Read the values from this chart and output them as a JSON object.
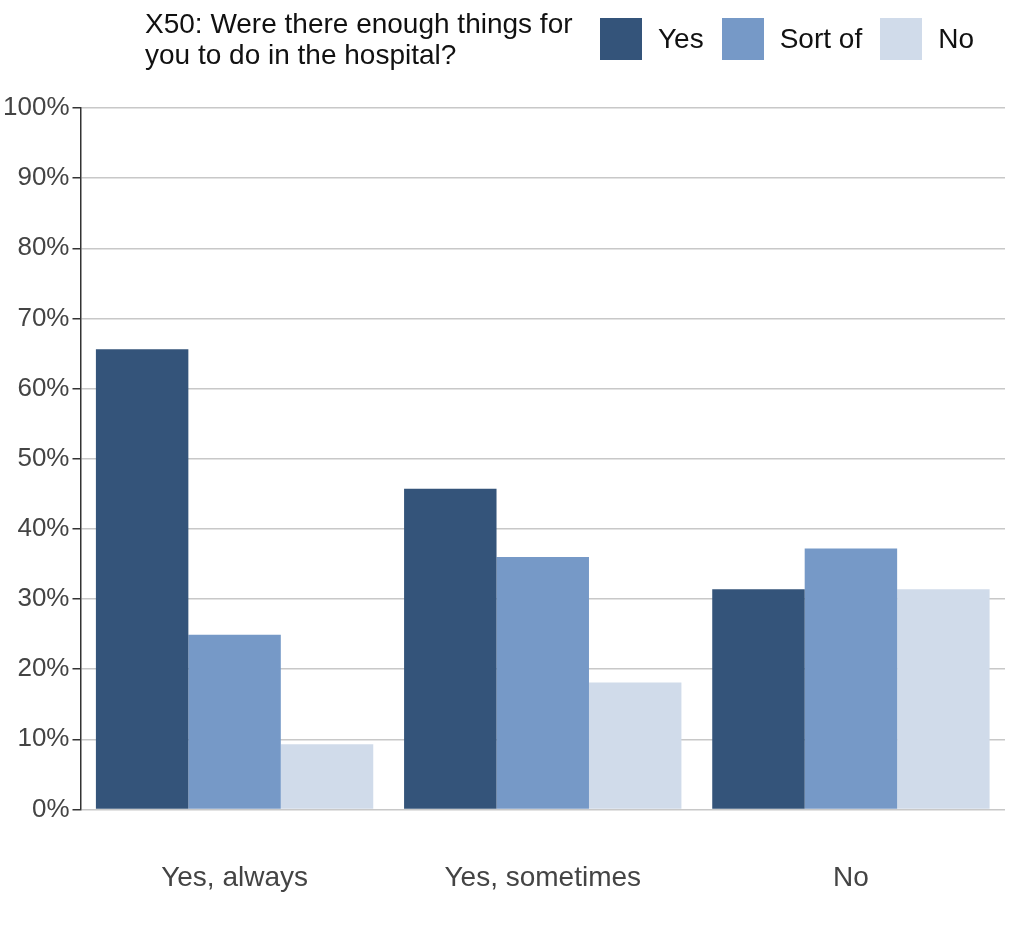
{
  "chart_data": {
    "type": "bar",
    "legend_title": "X50: Were there enough things for you to do in the hospital?",
    "categories": [
      "Yes, always",
      "Yes, sometimes",
      "No"
    ],
    "series": [
      {
        "name": "Yes",
        "color": "#34547a",
        "values": [
          65.6,
          45.7,
          31.4
        ]
      },
      {
        "name": "Sort of",
        "color": "#7699c7",
        "values": [
          24.9,
          36.0,
          37.2
        ]
      },
      {
        "name": "No",
        "color": "#d0dbea",
        "values": [
          9.3,
          18.1,
          31.4
        ]
      }
    ],
    "ylim": [
      0,
      100
    ],
    "yticks": [
      {
        "value": 0,
        "label": "0%"
      },
      {
        "value": 10,
        "label": "10%"
      },
      {
        "value": 20,
        "label": "20%"
      },
      {
        "value": 30,
        "label": "30%"
      },
      {
        "value": 40,
        "label": "40%"
      },
      {
        "value": 50,
        "label": "50%"
      },
      {
        "value": 60,
        "label": "60%"
      },
      {
        "value": 70,
        "label": "70%"
      },
      {
        "value": 80,
        "label": "80%"
      },
      {
        "value": 90,
        "label": "90%"
      },
      {
        "value": 100,
        "label": "100%"
      }
    ],
    "grid": "y",
    "legend": "top"
  }
}
